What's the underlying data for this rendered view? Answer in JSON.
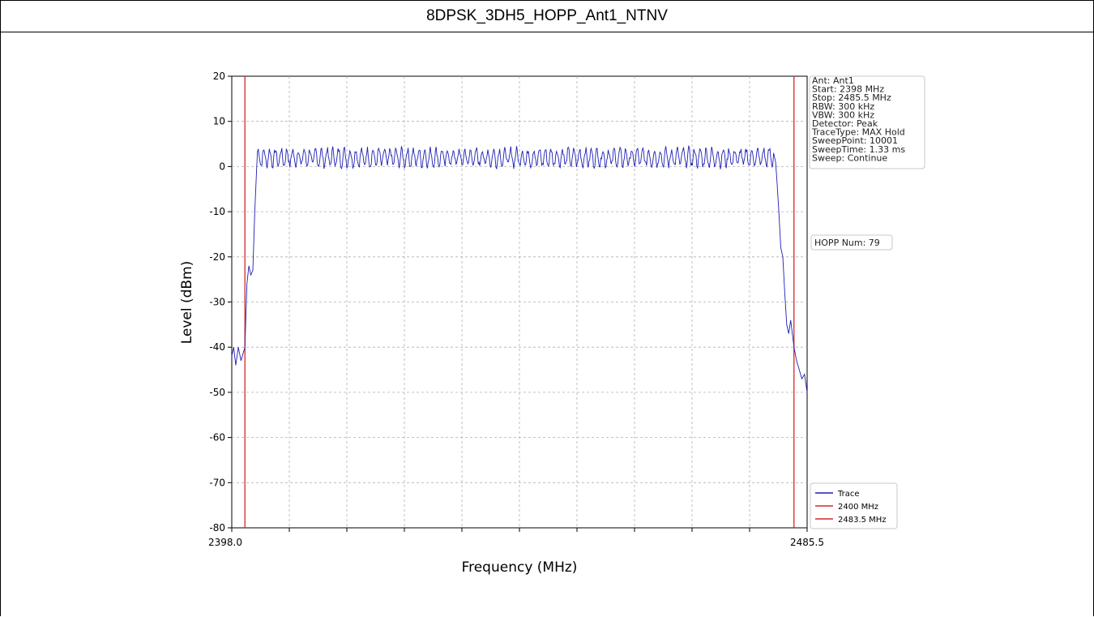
{
  "page_title": "8DPSK_3DH5_HOPP_Ant1_NTNV",
  "chart_data": {
    "type": "line",
    "title": "8DPSK_3DH5_HOPP_Ant1_NTNV",
    "xlabel": "Frequency (MHz)",
    "ylabel": "Level (dBm)",
    "xlim": [
      2398.0,
      2485.5
    ],
    "ylim": [
      -80,
      20
    ],
    "x_tick_labels": [
      "2398.0",
      "2485.5"
    ],
    "y_ticks": [
      20,
      10,
      0,
      -10,
      -20,
      -30,
      -40,
      -50,
      -60,
      -70,
      -80
    ],
    "grid": true,
    "series": [
      {
        "name": "Trace",
        "color": "#1f1fb4",
        "description_points": {
          "x": [
            2398.0,
            2398.3,
            2398.6,
            2399.0,
            2399.4,
            2399.8,
            2400.0,
            2400.3,
            2400.6,
            2400.9,
            2401.2,
            2401.5,
            2401.8,
            2402.0,
            2402.3,
            2402.6,
            2403.0,
            2480.0,
            2480.4,
            2480.7,
            2480.9,
            2481.2,
            2481.5,
            2481.8,
            2482.1,
            2482.4,
            2482.7,
            2483.0,
            2483.5,
            2483.9,
            2484.3,
            2484.7,
            2485.1,
            2485.5
          ],
          "y": [
            -42,
            -40,
            -44,
            -40,
            -43,
            -41,
            -40,
            -26,
            -22,
            -24,
            -23,
            -10,
            0,
            2,
            1,
            3,
            2,
            2,
            3,
            1,
            -3,
            -10,
            -18,
            -20,
            -28,
            -35,
            -37,
            -34,
            -40,
            -43,
            -45,
            -47,
            -46,
            -50
          ]
        },
        "ripple": {
          "center_level": 2,
          "amplitude": 2,
          "approx_cycles": 90,
          "x_start": 2401.8,
          "x_end": 2480.4
        }
      },
      {
        "name": "2400 MHz",
        "color": "#d62728",
        "type": "vline",
        "x": 2400.0
      },
      {
        "name": "2483.5 MHz",
        "color": "#d62728",
        "type": "vline",
        "x": 2483.5
      }
    ],
    "legend_position": "bottom-right",
    "info_box": [
      "Ant: Ant1",
      "Start: 2398 MHz",
      "Stop: 2485.5 MHz",
      "RBW: 300 kHz",
      "VBW: 300 kHz",
      "Detector: Peak",
      "TraceType: MAX Hold",
      "SweepPoint: 10001",
      "SweepTime: 1.33 ms",
      "Sweep: Continue"
    ],
    "hopp_box": "HOPP Num: 79"
  }
}
